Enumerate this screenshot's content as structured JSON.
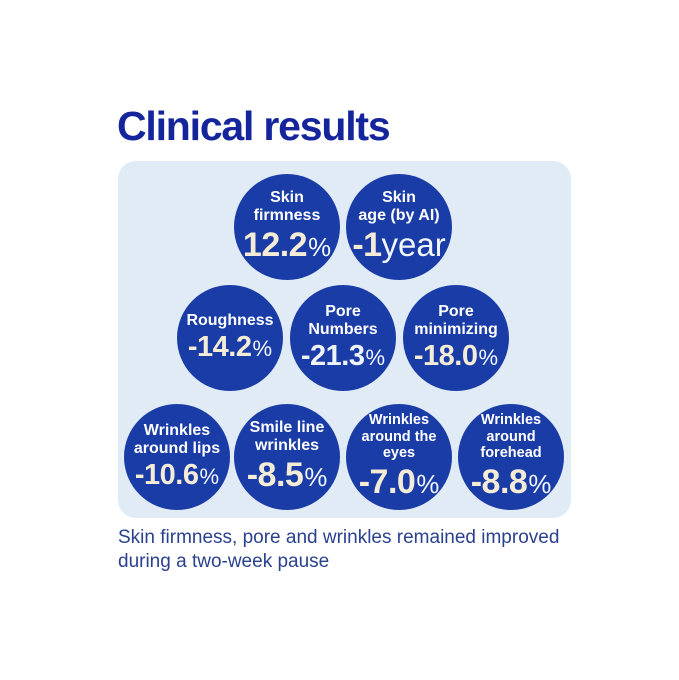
{
  "page": {
    "title": "Clinical results",
    "caption": "Skin firmness, pore and wrinkles remained improved\nduring a two-week pause"
  },
  "colors": {
    "page_background": "#ffffff",
    "title_text": "#15259c",
    "panel_background": "#e0ebf6",
    "bubble_background": "#1a3ca6",
    "bubble_label_text": "#ffffff",
    "bubble_value_cream": "#f5ecd7",
    "bubble_value_white": "#eef3fc",
    "suffix_text": "#f2f6fd",
    "caption_text": "#2a418f"
  },
  "circles": [
    {
      "label": "Skin\nfirmness",
      "value": "12.2",
      "suffix": "%"
    },
    {
      "label": "Skin\nage (by AI)",
      "value": "-1",
      "suffix": "year"
    },
    {
      "label": "Roughness",
      "value": "-14.2",
      "suffix": "%"
    },
    {
      "label": "Pore\nNumbers",
      "value": "-21.3",
      "suffix": "%"
    },
    {
      "label": "Pore\nminimizing",
      "value": "-18.0",
      "suffix": "%"
    },
    {
      "label": "Wrinkles\naround lips",
      "value": "-10.6",
      "suffix": "%"
    },
    {
      "label": "Smile line\nwrinkles",
      "value": "-8.5",
      "suffix": "%"
    },
    {
      "label": "Wrinkles\naround the\neyes",
      "value": "-7.0",
      "suffix": "%"
    },
    {
      "label": "Wrinkles\naround\nforehead",
      "value": "-8.8",
      "suffix": "%"
    }
  ],
  "chart_data": {
    "type": "table",
    "title": "Clinical results",
    "categories": [
      "Skin firmness",
      "Skin age (by AI)",
      "Roughness",
      "Pore Numbers",
      "Pore minimizing",
      "Wrinkles around lips",
      "Smile line wrinkles",
      "Wrinkles around the eyes",
      "Wrinkles around forehead"
    ],
    "values": [
      12.2,
      -1,
      -14.2,
      -21.3,
      -18.0,
      -10.6,
      -8.5,
      -7.0,
      -8.8
    ],
    "units": [
      "%",
      "year",
      "%",
      "%",
      "%",
      "%",
      "%",
      "%",
      "%"
    ],
    "layout_rows": [
      2,
      3,
      4
    ],
    "annotation": "Skin firmness, pore and wrinkles remained improved during a two-week pause"
  }
}
